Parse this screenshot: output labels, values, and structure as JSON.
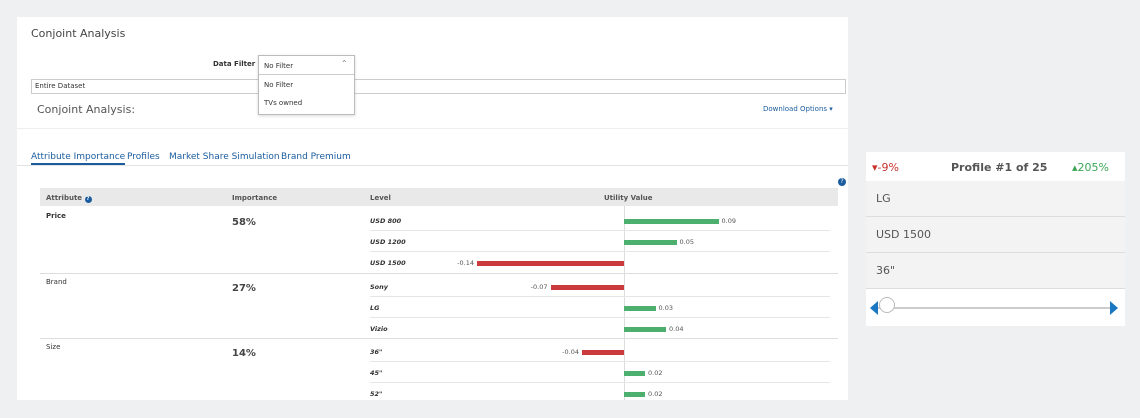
{
  "header": {
    "title": "Conjoint Analysis"
  },
  "filter": {
    "label": "Data Filter",
    "selected": "No Filter",
    "options": [
      "No Filter",
      "TVs owned"
    ]
  },
  "dataset": "Entire Dataset",
  "section": {
    "title": "Conjoint Analysis:",
    "download": "Download Options"
  },
  "tabs": [
    "Attribute Importance",
    "Profiles",
    "Market Share Simulation",
    "Brand Premium"
  ],
  "table": {
    "headers": [
      "Attribute",
      "Importance",
      "Level",
      "Utility Value"
    ],
    "groups": [
      {
        "attribute": "Price",
        "importance": "58%",
        "levels": [
          {
            "name": "USD 800",
            "utility": 0.09
          },
          {
            "name": "USD 1200",
            "utility": 0.05
          },
          {
            "name": "USD 1500",
            "utility": -0.14
          }
        ]
      },
      {
        "attribute": "Brand",
        "importance": "27%",
        "levels": [
          {
            "name": "Sony",
            "utility": -0.07
          },
          {
            "name": "LG",
            "utility": 0.03
          },
          {
            "name": "Vizio",
            "utility": 0.04
          }
        ]
      },
      {
        "attribute": "Size",
        "importance": "14%",
        "levels": [
          {
            "name": "36\"",
            "utility": -0.04
          },
          {
            "name": "45\"",
            "utility": 0.02
          },
          {
            "name": "52\"",
            "utility": 0.02
          }
        ]
      }
    ]
  },
  "profile": {
    "low": "-9%",
    "title": "Profile #1 of 25",
    "high": "205%",
    "items": [
      "LG",
      "USD 1500",
      "36\""
    ]
  }
}
